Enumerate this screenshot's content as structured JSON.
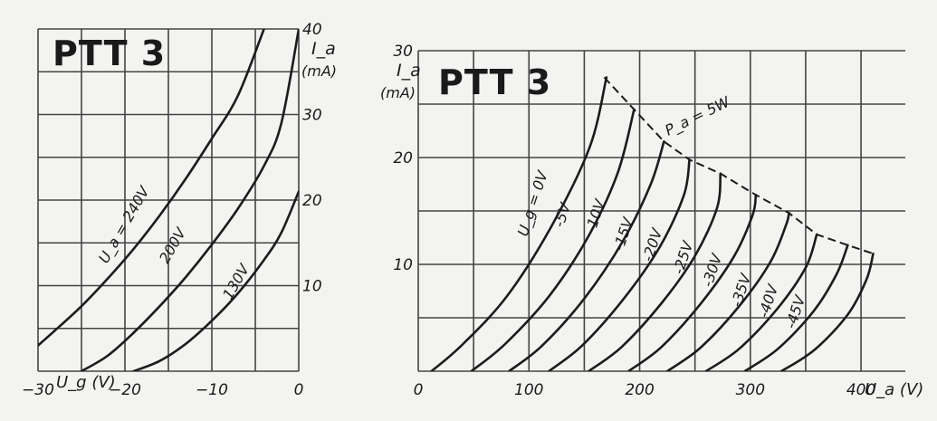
{
  "colors": {
    "ink": "#1c1c1c",
    "paper": "#f3f3f1",
    "grid": "#444444"
  },
  "chart_data": [
    {
      "type": "line",
      "title": "PTT 3",
      "xlabel": "U_g (V)",
      "ylabel": "I_a (mA)",
      "xlim": [
        -30,
        0
      ],
      "ylim": [
        0,
        40
      ],
      "grid": true,
      "x_ticks": [
        {
          "value": -30,
          "label": "-30"
        },
        {
          "value": -20,
          "label": "-20"
        },
        {
          "value": -10,
          "label": "-10"
        },
        {
          "value": 0,
          "label": "0"
        }
      ],
      "y_ticks": [
        {
          "value": 10,
          "label": "10"
        },
        {
          "value": 20,
          "label": "20"
        },
        {
          "value": 30,
          "label": "30"
        },
        {
          "value": 40,
          "label": "40"
        }
      ],
      "series": [
        {
          "name": "U_a = 240V",
          "points": [
            [
              -30,
              3
            ],
            [
              -28,
              4.8
            ],
            [
              -25,
              7.6
            ],
            [
              -22,
              10.8
            ],
            [
              -19,
              14.3
            ],
            [
              -16,
              18.2
            ],
            [
              -13,
              22.5
            ],
            [
              -10,
              27.2
            ],
            [
              -7,
              32.2
            ],
            [
              -4,
              40
            ]
          ]
        },
        {
          "name": "200V",
          "points": [
            [
              -25,
              0
            ],
            [
              -22,
              1.8
            ],
            [
              -19,
              4.5
            ],
            [
              -16,
              7.6
            ],
            [
              -13,
              11
            ],
            [
              -10,
              14.8
            ],
            [
              -7,
              19
            ],
            [
              -4,
              24
            ],
            [
              -2,
              29
            ],
            [
              0,
              40
            ]
          ]
        },
        {
          "name": "130V",
          "points": [
            [
              -19,
              0
            ],
            [
              -16,
              1.2
            ],
            [
              -13,
              3.2
            ],
            [
              -10,
              5.9
            ],
            [
              -7,
              9.1
            ],
            [
              -4,
              13
            ],
            [
              -2,
              16.2
            ],
            [
              0,
              21
            ]
          ]
        }
      ]
    },
    {
      "type": "line",
      "title": "PTT 3",
      "xlabel": "U_a (V)",
      "ylabel": "I_a (mA)",
      "xlim": [
        0,
        440
      ],
      "ylim": [
        0,
        30
      ],
      "grid": true,
      "x_ticks": [
        {
          "value": 0,
          "label": "0"
        },
        {
          "value": 100,
          "label": "100"
        },
        {
          "value": 200,
          "label": "200"
        },
        {
          "value": 300,
          "label": "300"
        },
        {
          "value": 400,
          "label": "400"
        }
      ],
      "y_ticks": [
        {
          "value": 10,
          "label": "10"
        },
        {
          "value": 20,
          "label": "20"
        },
        {
          "value": 30,
          "label": "30"
        }
      ],
      "series": [
        {
          "name": "U_g = 0V",
          "points": [
            [
              12,
              0
            ],
            [
              40,
              2.5
            ],
            [
              80,
              7
            ],
            [
              120,
              13.5
            ],
            [
              155,
              21
            ],
            [
              170,
              27.5
            ]
          ]
        },
        {
          "name": "-5V",
          "points": [
            [
              48,
              0
            ],
            [
              78,
              2.5
            ],
            [
              118,
              7
            ],
            [
              153,
              12.5
            ],
            [
              180,
              18.5
            ],
            [
              195,
              24.5
            ]
          ]
        },
        {
          "name": "-10V",
          "points": [
            [
              82,
              0
            ],
            [
              112,
              2.4
            ],
            [
              150,
              6.8
            ],
            [
              185,
              12.2
            ],
            [
              210,
              17.5
            ],
            [
              222,
              21.5
            ]
          ]
        },
        {
          "name": "-15V",
          "points": [
            [
              118,
              0
            ],
            [
              148,
              2.4
            ],
            [
              185,
              6.7
            ],
            [
              218,
              11.6
            ],
            [
              240,
              16.5
            ],
            [
              245,
              19.8
            ]
          ]
        },
        {
          "name": "-20V",
          "points": [
            [
              154,
              0
            ],
            [
              184,
              2.3
            ],
            [
              220,
              6.4
            ],
            [
              250,
              10.8
            ],
            [
              270,
              15.3
            ],
            [
              273,
              18.5
            ]
          ]
        },
        {
          "name": "-25V",
          "points": [
            [
              190,
              0
            ],
            [
              220,
              2.3
            ],
            [
              255,
              6.3
            ],
            [
              285,
              10.7
            ],
            [
              302,
              14.6
            ],
            [
              305,
              16.5
            ]
          ]
        },
        {
          "name": "-30V",
          "points": [
            [
              225,
              0
            ],
            [
              255,
              2.2
            ],
            [
              290,
              6.1
            ],
            [
              318,
              10.2
            ],
            [
              332,
              13.6
            ],
            [
              335,
              14.8
            ]
          ]
        },
        {
          "name": "-35V",
          "points": [
            [
              260,
              0
            ],
            [
              290,
              2.1
            ],
            [
              324,
              5.8
            ],
            [
              350,
              9.7
            ],
            [
              360,
              12.8
            ]
          ]
        },
        {
          "name": "-40V",
          "points": [
            [
              295,
              0
            ],
            [
              325,
              2.1
            ],
            [
              357,
              5.6
            ],
            [
              378,
              9.1
            ],
            [
              388,
              11.8
            ]
          ]
        },
        {
          "name": "-45V",
          "points": [
            [
              328,
              0
            ],
            [
              358,
              2
            ],
            [
              388,
              5.3
            ],
            [
              405,
              8.6
            ],
            [
              411,
              11
            ]
          ]
        }
      ],
      "annotations": [
        {
          "text": "P_a = 5W",
          "type": "max dissipation limit",
          "points": [
            [
              168,
              27.5
            ],
            [
              195,
              24.5
            ],
            [
              222,
              21.5
            ],
            [
              245,
              19.8
            ],
            [
              273,
              18.5
            ],
            [
              305,
              16.5
            ],
            [
              335,
              14.8
            ],
            [
              360,
              12.8
            ],
            [
              388,
              11.8
            ],
            [
              411,
              11
            ]
          ]
        }
      ]
    }
  ],
  "labels": {
    "left_title": "PTT 3",
    "right_title": "PTT 3",
    "left_x_axis": "U_g (V)",
    "left_y_axis_top": "I_a",
    "left_y_axis_unit": "(mA)",
    "right_x_axis": "U_a (V)",
    "right_y_axis_top": "I_a",
    "right_y_axis_unit": "(mA)",
    "left_curve_labels": [
      "U_a = 240V",
      "200V",
      "130V"
    ],
    "right_curve_labels": [
      "U_g = 0V",
      "-5V",
      "-10V",
      "-15V",
      "-20V",
      "-25V",
      "-30V",
      "-35V",
      "-40V",
      "-45V"
    ],
    "limit_label": "P_a = 5W"
  }
}
